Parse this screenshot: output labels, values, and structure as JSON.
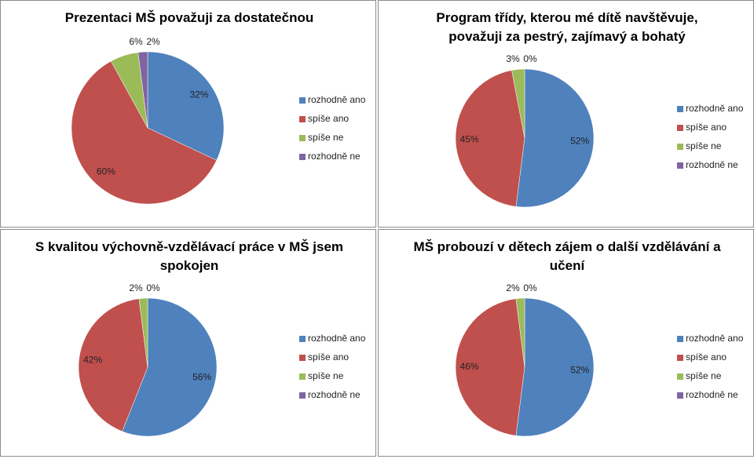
{
  "chart_data": [
    {
      "type": "pie",
      "title": "Prezentaci MŠ považuji za dostatečnou",
      "categories": [
        "rozhodně ano",
        "spíše ano",
        "spíše ne",
        "rozhodně ne"
      ],
      "values": [
        32,
        60,
        6,
        2
      ],
      "value_labels": [
        "32%",
        "60%",
        "6%",
        "2%"
      ],
      "colors": [
        "#4f81bd",
        "#c0504d",
        "#9bbb59",
        "#8064a2"
      ],
      "legend": "right"
    },
    {
      "type": "pie",
      "title": "Program třídy, kterou mé dítě navštěvuje, považuji za pestrý, zajímavý a bohatý",
      "categories": [
        "rozhodně ano",
        "spíše ano",
        "spíše ne",
        "rozhodně ne"
      ],
      "values": [
        52,
        45,
        3,
        0
      ],
      "value_labels": [
        "52%",
        "45%",
        "3%",
        "0%"
      ],
      "colors": [
        "#4f81bd",
        "#c0504d",
        "#9bbb59",
        "#8064a2"
      ],
      "legend": "right"
    },
    {
      "type": "pie",
      "title": "S kvalitou výchovně-vzdělávací práce v MŠ jsem spokojen",
      "categories": [
        "rozhodně ano",
        "spíše ano",
        "spíše ne",
        "rozhodně ne"
      ],
      "values": [
        56,
        42,
        2,
        0
      ],
      "value_labels": [
        "56%",
        "42%",
        "2%",
        "0%"
      ],
      "colors": [
        "#4f81bd",
        "#c0504d",
        "#9bbb59",
        "#8064a2"
      ],
      "legend": "right"
    },
    {
      "type": "pie",
      "title": "MŠ probouzí v dětech zájem o další vzdělávání a učení",
      "categories": [
        "rozhodně ano",
        "spíše ano",
        "spíše ne",
        "rozhodně ne"
      ],
      "values": [
        52,
        46,
        2,
        0
      ],
      "value_labels": [
        "52%",
        "46%",
        "2%",
        "0%"
      ],
      "colors": [
        "#4f81bd",
        "#c0504d",
        "#9bbb59",
        "#8064a2"
      ],
      "legend": "right"
    }
  ]
}
